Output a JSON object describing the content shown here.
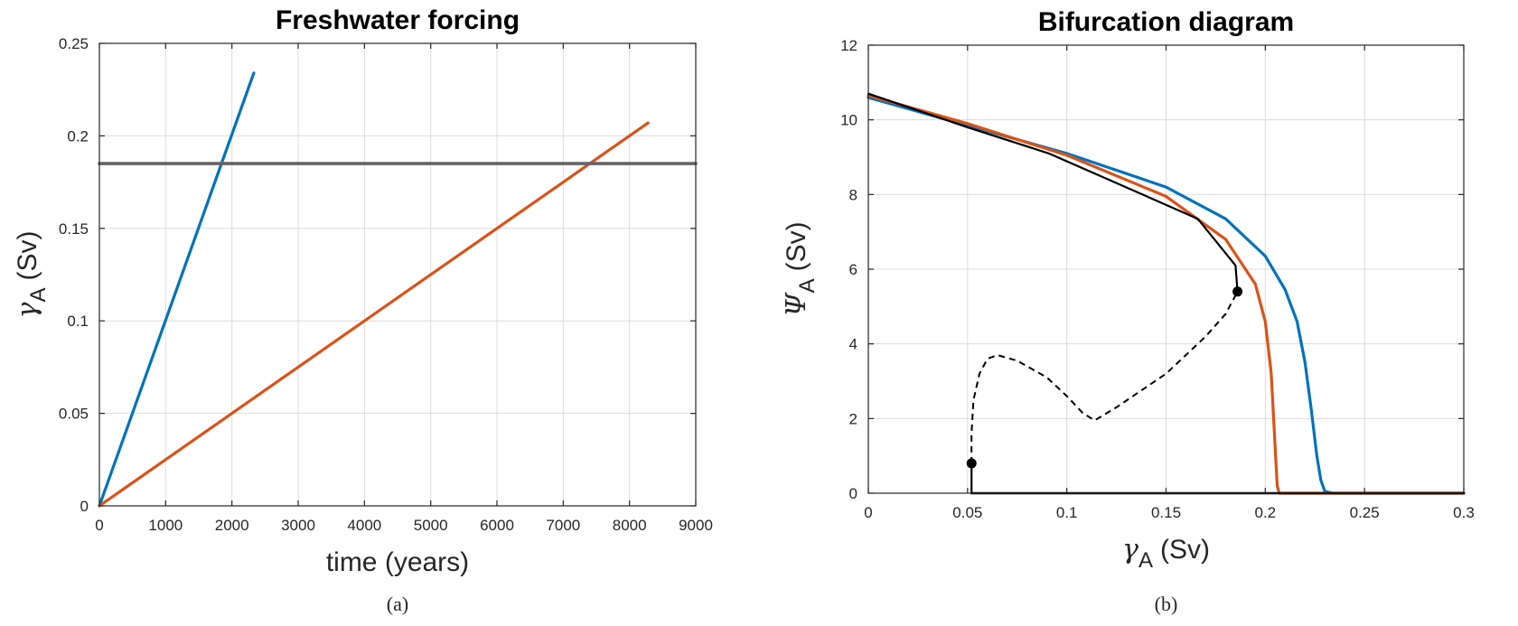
{
  "chart_data": [
    {
      "id": "a",
      "type": "line",
      "title": "Freshwater forcing",
      "xlabel": "time (years)",
      "ylabel_symbol": "γ",
      "ylabel_sub": "A",
      "ylabel_unit": "(Sv)",
      "caption": "(a)",
      "xlim": [
        0,
        9000
      ],
      "ylim": [
        0,
        0.25
      ],
      "xticks": [
        0,
        1000,
        2000,
        3000,
        4000,
        5000,
        6000,
        7000,
        8000,
        9000
      ],
      "yticks": [
        0,
        0.05,
        0.1,
        0.15,
        0.2,
        0.25
      ],
      "grid": true,
      "series": [
        {
          "color": "#0072BD",
          "width": 3.2,
          "dash": "",
          "x": [
            0,
            2330
          ],
          "y": [
            0,
            0.234
          ]
        },
        {
          "color": "#D95319",
          "width": 3.2,
          "dash": "",
          "x": [
            0,
            8280
          ],
          "y": [
            0,
            0.207
          ]
        },
        {
          "color": "#646464",
          "width": 3.6,
          "dash": "",
          "x": [
            0,
            9000
          ],
          "y": [
            0.185,
            0.185
          ]
        }
      ],
      "markers": []
    },
    {
      "id": "b",
      "type": "line",
      "title": "Bifurcation diagram",
      "xlabel_symbol": "γ",
      "xlabel_sub": "A",
      "xlabel_unit": "(Sv)",
      "ylabel_symbol": "Ψ",
      "ylabel_sub": "A",
      "ylabel_unit": "(Sv)",
      "caption": "(b)",
      "xlim": [
        0,
        0.3
      ],
      "ylim": [
        0,
        12
      ],
      "xticks": [
        0,
        0.05,
        0.1,
        0.15,
        0.2,
        0.25,
        0.3
      ],
      "yticks": [
        0,
        2,
        4,
        6,
        8,
        10,
        12
      ],
      "grid": true,
      "series": [
        {
          "color": "#0072BD",
          "width": 3.2,
          "dash": "",
          "x": [
            0,
            0.05,
            0.1,
            0.15,
            0.18,
            0.2,
            0.21,
            0.216,
            0.22,
            0.223,
            0.226,
            0.228,
            0.23,
            0.234,
            0.3
          ],
          "y": [
            10.6,
            9.85,
            9.1,
            8.2,
            7.35,
            6.35,
            5.45,
            4.6,
            3.5,
            2.3,
            1.0,
            0.35,
            0.05,
            0.0,
            0.0
          ]
        },
        {
          "color": "#D95319",
          "width": 3.2,
          "dash": "",
          "x": [
            0,
            0.05,
            0.1,
            0.15,
            0.18,
            0.195,
            0.2,
            0.203,
            0.205,
            0.206,
            0.207,
            0.3
          ],
          "y": [
            10.65,
            9.9,
            9.05,
            7.95,
            6.8,
            5.6,
            4.6,
            3.2,
            1.2,
            0.2,
            0.0,
            0.0
          ]
        },
        {
          "color": "#000000",
          "width": 2.2,
          "dash": "",
          "x": [
            0,
            0.05,
            0.091,
            0.166,
            0.185,
            0.186
          ],
          "y": [
            10.7,
            9.8,
            9.1,
            7.35,
            6.1,
            5.4
          ]
        },
        {
          "color": "#000000",
          "width": 2.0,
          "dash": "7,5",
          "x": [
            0.052,
            0.052,
            0.053,
            0.056,
            0.06,
            0.065,
            0.075,
            0.09,
            0.1,
            0.108,
            0.114,
            0.125,
            0.15,
            0.17,
            0.18,
            0.186
          ],
          "y": [
            0.8,
            1.6,
            2.5,
            3.2,
            3.6,
            3.7,
            3.55,
            3.1,
            2.6,
            2.15,
            1.95,
            2.3,
            3.2,
            4.2,
            4.8,
            5.4
          ]
        },
        {
          "color": "#000000",
          "width": 2.2,
          "dash": "",
          "x": [
            0.052,
            0.052
          ],
          "y": [
            0.8,
            0.0
          ]
        },
        {
          "color": "#000000",
          "width": 2.6,
          "dash": "",
          "x": [
            0.052,
            0.3
          ],
          "y": [
            0.0,
            0.0
          ]
        }
      ],
      "markers": [
        {
          "color": "#000000",
          "x": 0.052,
          "y": 0.8
        },
        {
          "color": "#000000",
          "x": 0.186,
          "y": 5.4
        }
      ]
    }
  ]
}
